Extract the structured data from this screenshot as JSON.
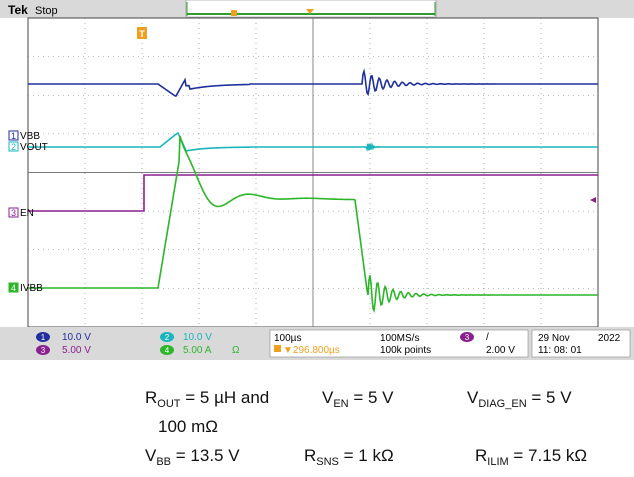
{
  "scope": {
    "brand": "Tek",
    "run_state": "Stop",
    "trigger_marker": "T",
    "channel_labels": {
      "ch1": "VBB",
      "ch2": "VOUT",
      "ch3": "EN",
      "ch4": "IVBB"
    },
    "channel_numbers": {
      "ch1": "1",
      "ch2": "2",
      "ch3": "3",
      "ch4": "4"
    },
    "readouts": {
      "ch1_scale": "10.0 V",
      "ch2_scale": "10.0 V",
      "ch3_scale": "5.00 V",
      "ch4_scale": "5.00 A",
      "ch4_impedance": "Ω",
      "timebase": "100µs",
      "trigger_position": "▼296.800µs",
      "sample_rate": "100MS/s",
      "record_length": "100k points",
      "trigger_source": "3",
      "trigger_slope": "/",
      "trigger_level": "2.00 V",
      "date": "29 Nov",
      "year": "2022",
      "time": "11: 08: 01"
    },
    "colors": {
      "ch1": "#1f2f9e",
      "ch2": "#19b5bd",
      "ch3": "#8a1f8f",
      "ch4": "#2db52a",
      "grid": "#7a7a7a",
      "trigger_marker": "#f0a020"
    }
  },
  "captions": {
    "r_out": {
      "sym": "R",
      "sub": "OUT",
      "text": " = 5 µH and"
    },
    "r_out_2": "100 mΩ",
    "v_en": {
      "sym": "V",
      "sub": "EN",
      "text": " = 5 V"
    },
    "v_diag": {
      "sym": "V",
      "sub": "DIAG_EN",
      "text": " = 5 V"
    },
    "v_bb": {
      "sym": "V",
      "sub": "BB",
      "text": " = 13.5 V"
    },
    "r_sns": {
      "sym": "R",
      "sub": "SNS",
      "text": " = 1 kΩ"
    },
    "r_ilim": {
      "sym": "R",
      "sub": "ILIM",
      "text": " = 7.15 kΩ"
    }
  }
}
